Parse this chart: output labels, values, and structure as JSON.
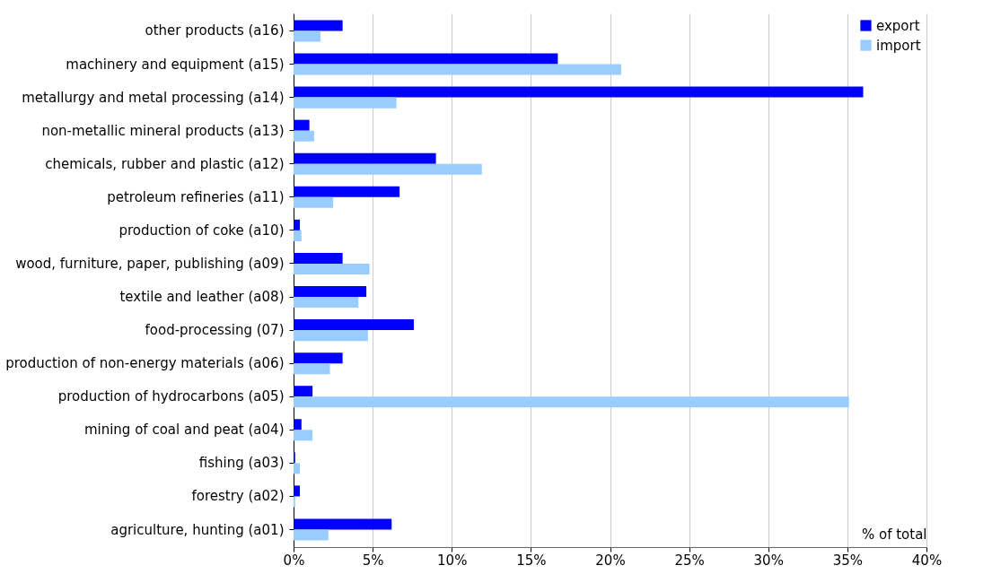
{
  "chart_data": {
    "type": "bar",
    "orientation": "horizontal",
    "xlabel": "% of total",
    "categories": [
      "other products (a16)",
      "machinery and equipment (a15)",
      "metallurgy and metal processing (a14)",
      "non-metallic mineral products (a13)",
      "chemicals, rubber and plastic (a12)",
      "petroleum refineries (a11)",
      "production of coke (a10)",
      "wood, furniture, paper, publishing (a09)",
      "textile and leather (a08)",
      "food-processing (07)",
      "production of non-energy materials (a06)",
      "production of hydrocarbons (a05)",
      "mining of coal and peat (a04)",
      "fishing (a03)",
      "forestry (a02)",
      "agriculture, hunting (a01)"
    ],
    "series": [
      {
        "name": "export",
        "color": "#0000ff",
        "values": [
          3.1,
          16.7,
          36.0,
          1.0,
          9.0,
          6.7,
          0.4,
          3.1,
          4.6,
          7.6,
          3.1,
          1.2,
          0.5,
          0.1,
          0.4,
          6.2
        ]
      },
      {
        "name": "import",
        "color": "#99ccff",
        "values": [
          1.7,
          20.7,
          6.5,
          1.3,
          11.9,
          2.5,
          0.5,
          4.8,
          4.1,
          4.7,
          2.3,
          35.1,
          1.2,
          0.4,
          0.1,
          2.2
        ]
      }
    ],
    "xlim": [
      0,
      40
    ],
    "xticks": [
      {
        "value": 0,
        "label": "0%"
      },
      {
        "value": 5,
        "label": "5%"
      },
      {
        "value": 10,
        "label": "10%"
      },
      {
        "value": 15,
        "label": "15%"
      },
      {
        "value": 20,
        "label": "20%"
      },
      {
        "value": 25,
        "label": "25%"
      },
      {
        "value": 30,
        "label": "30%"
      },
      {
        "value": 35,
        "label": "35%"
      },
      {
        "value": 40,
        "label": "40%"
      }
    ],
    "grid": "x",
    "legend": "top right"
  }
}
